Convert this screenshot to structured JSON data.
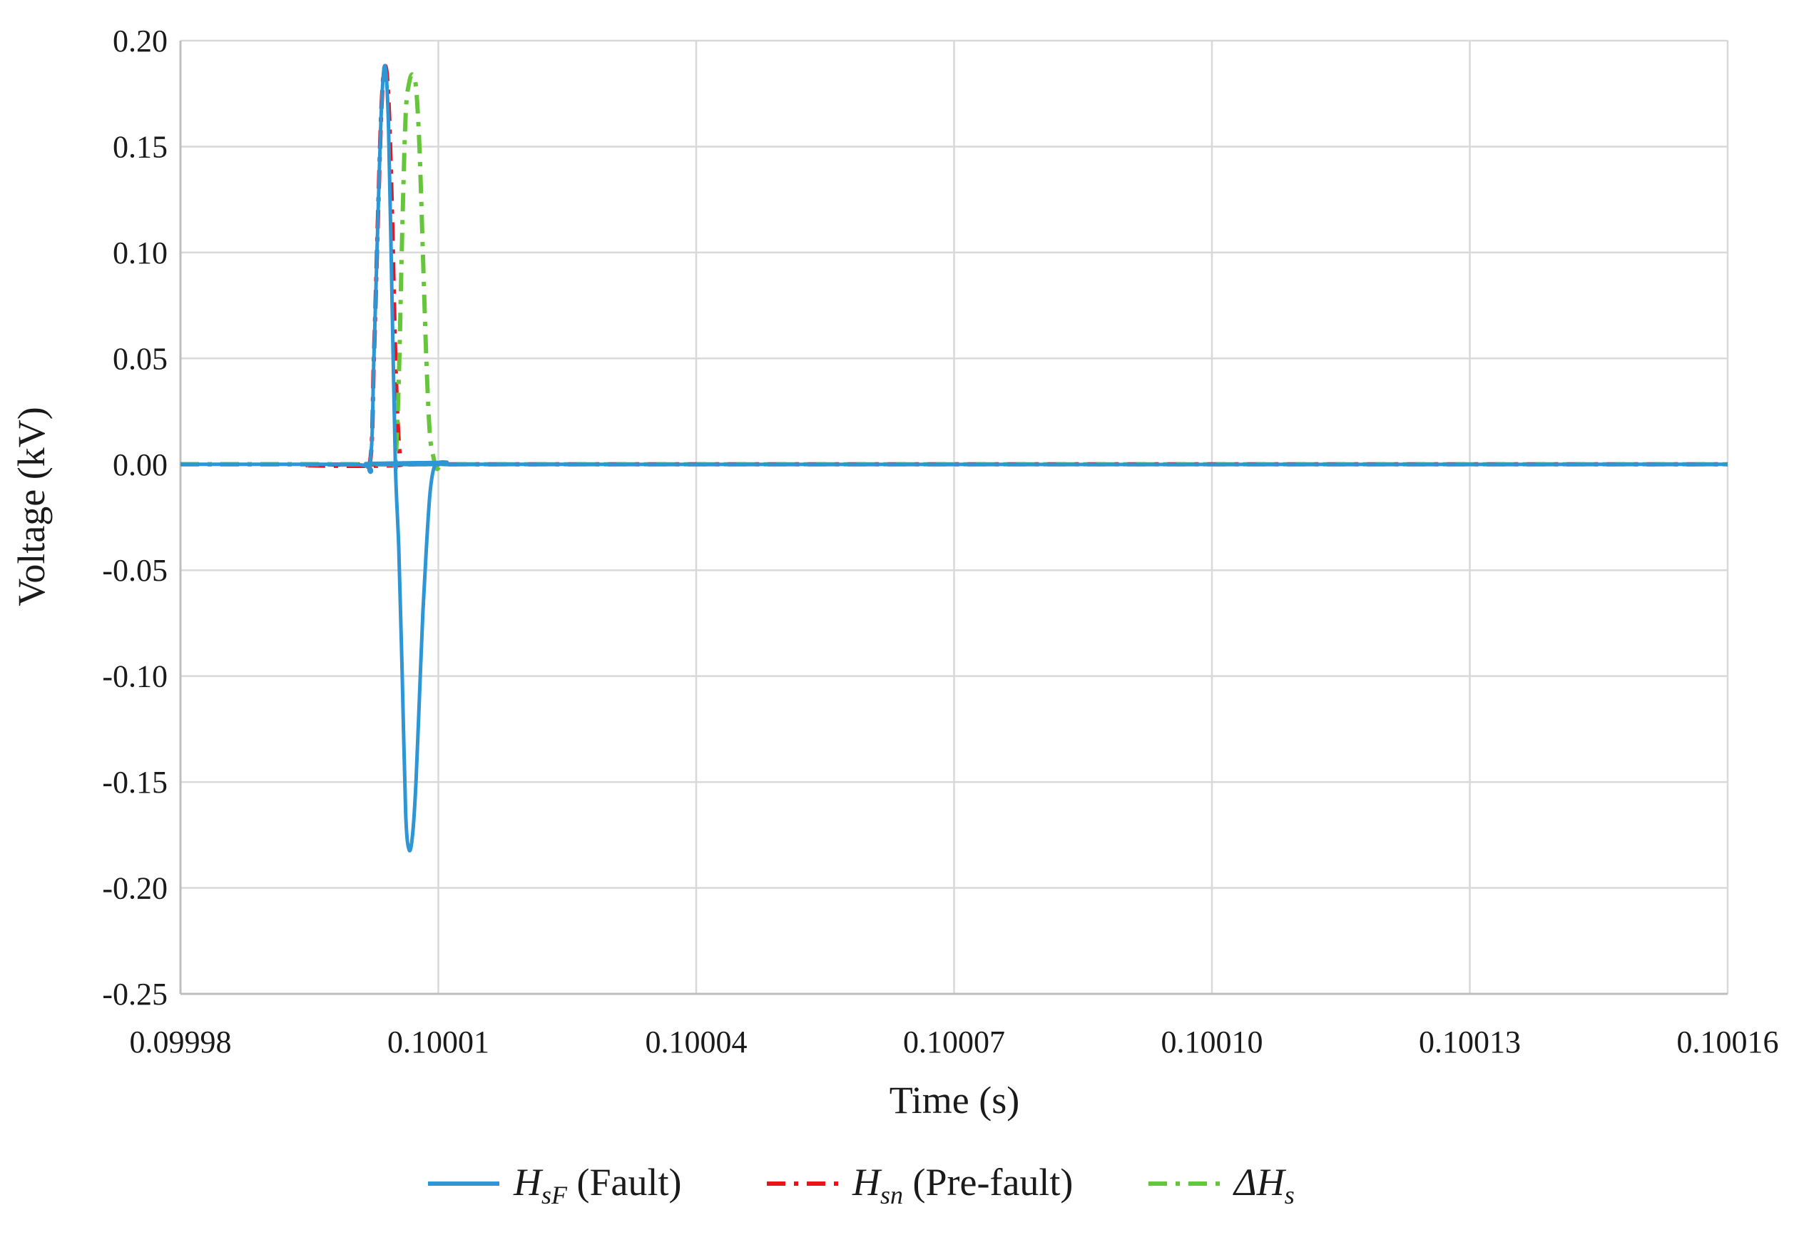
{
  "chart_data": {
    "type": "line",
    "xlabel": "Time (s)",
    "ylabel": "Voltage (kV)",
    "xlim": [
      0.09998,
      0.10016
    ],
    "ylim": [
      -0.25,
      0.2
    ],
    "x_ticks": [
      "0.09998",
      "0.10001",
      "0.10004",
      "0.10007",
      "0.10010",
      "0.10013",
      "0.10016"
    ],
    "x_tick_values": [
      0.09998,
      0.10001,
      0.10004,
      0.10007,
      0.1001,
      0.10013,
      0.10016
    ],
    "y_ticks": [
      "0.20",
      "0.15",
      "0.10",
      "0.05",
      "0.00",
      "-0.05",
      "-0.10",
      "-0.15",
      "-0.20",
      "-0.25"
    ],
    "y_tick_values": [
      0.2,
      0.15,
      0.1,
      0.05,
      0.0,
      -0.05,
      -0.1,
      -0.15,
      -0.2,
      -0.25
    ],
    "grid": true,
    "legend_position": "bottom",
    "series": [
      {
        "key": "fault",
        "legend_main": "H",
        "legend_sub": "sF",
        "legend_rest": " (Fault)",
        "color": "#2e96d4",
        "style": "solid",
        "x": [
          0.09998,
          0.1,
          0.100002,
          0.1000025,
          0.100003,
          0.1000034,
          0.1000038,
          0.1000042,
          0.1000046,
          0.100005,
          0.1000054,
          0.1000058,
          0.1000062,
          0.1000066,
          0.100007,
          0.1000074,
          0.1000078,
          0.1000082,
          0.1000086,
          0.100009,
          0.1000094,
          0.1000098,
          0.1000102,
          0.100011,
          0.100013,
          0.10016
        ],
        "y": [
          0.0,
          0.0,
          0.0,
          0.05,
          0.12,
          0.17,
          0.188,
          0.16,
          0.08,
          0.0,
          -0.04,
          -0.1,
          -0.165,
          -0.182,
          -0.175,
          -0.15,
          -0.11,
          -0.07,
          -0.04,
          -0.015,
          -0.003,
          0.0,
          0.001,
          0.001,
          0.0,
          0.0
        ]
      },
      {
        "key": "prefault",
        "legend_main": "H",
        "legend_sub": "sn",
        "legend_rest": " (Pre-fault)",
        "color": "#e8141c",
        "style": "dashdot",
        "x": [
          0.09998,
          0.1,
          0.100002,
          0.1000025,
          0.100003,
          0.1000034,
          0.1000038,
          0.1000042,
          0.1000046,
          0.100005,
          0.1000054,
          0.1000058,
          0.1000062,
          0.10016
        ],
        "y": [
          0.0,
          0.0,
          0.0,
          0.05,
          0.12,
          0.17,
          0.188,
          0.172,
          0.12,
          0.05,
          0.01,
          0.0,
          0.0,
          0.0
        ]
      },
      {
        "key": "delta",
        "legend_main": "ΔH",
        "legend_sub": "s",
        "legend_rest": "",
        "color": "#66c63a",
        "style": "dashdot",
        "x": [
          0.09998,
          0.1,
          0.1000046,
          0.100005,
          0.1000054,
          0.1000058,
          0.1000062,
          0.1000066,
          0.100007,
          0.1000074,
          0.1000078,
          0.1000082,
          0.1000086,
          0.100009,
          0.1000094,
          0.1000098,
          0.1000102,
          0.100011,
          0.100013,
          0.10016
        ],
        "y": [
          0.0,
          0.0,
          0.0,
          0.0,
          0.04,
          0.11,
          0.165,
          0.18,
          0.184,
          0.178,
          0.15,
          0.1,
          0.05,
          0.015,
          0.004,
          -0.002,
          -0.001,
          0.0,
          0.0,
          0.0
        ]
      }
    ]
  }
}
